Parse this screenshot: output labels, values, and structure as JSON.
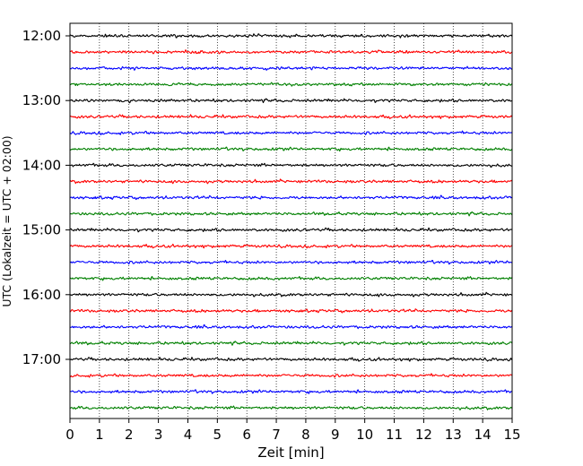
{
  "chart_data": {
    "type": "line",
    "title": "",
    "xlabel": "Zeit  [min]",
    "ylabel": "UTC (Lokalzeit = UTC + 02:00)",
    "xlim": [
      0,
      15
    ],
    "x_ticks": [
      "0",
      "1",
      "2",
      "3",
      "4",
      "5",
      "6",
      "7",
      "8",
      "9",
      "10",
      "11",
      "12",
      "13",
      "14",
      "15"
    ],
    "y_tick_labels": [
      "12:00",
      "13:00",
      "14:00",
      "15:00",
      "16:00",
      "17:00"
    ],
    "grid": "vertical dotted lines at each minute",
    "legend": "none",
    "trace_interval_min": 15,
    "trace_colors": [
      "#000000",
      "#ff0000",
      "#0000ff",
      "#008000"
    ],
    "series": [
      {
        "start": "12:00",
        "color": "#000000"
      },
      {
        "start": "12:15",
        "color": "#ff0000"
      },
      {
        "start": "12:30",
        "color": "#0000ff"
      },
      {
        "start": "12:45",
        "color": "#008000"
      },
      {
        "start": "13:00",
        "color": "#000000"
      },
      {
        "start": "13:15",
        "color": "#ff0000"
      },
      {
        "start": "13:30",
        "color": "#0000ff"
      },
      {
        "start": "13:45",
        "color": "#008000"
      },
      {
        "start": "14:00",
        "color": "#000000"
      },
      {
        "start": "14:15",
        "color": "#ff0000"
      },
      {
        "start": "14:30",
        "color": "#0000ff"
      },
      {
        "start": "14:45",
        "color": "#008000"
      },
      {
        "start": "15:00",
        "color": "#000000"
      },
      {
        "start": "15:15",
        "color": "#ff0000"
      },
      {
        "start": "15:30",
        "color": "#0000ff"
      },
      {
        "start": "15:45",
        "color": "#008000"
      },
      {
        "start": "16:00",
        "color": "#000000"
      },
      {
        "start": "16:15",
        "color": "#ff0000"
      },
      {
        "start": "16:30",
        "color": "#0000ff"
      },
      {
        "start": "16:45",
        "color": "#008000"
      },
      {
        "start": "17:00",
        "color": "#000000"
      },
      {
        "start": "17:15",
        "color": "#ff0000"
      },
      {
        "start": "17:30",
        "color": "#0000ff"
      },
      {
        "start": "17:45",
        "color": "#008000"
      }
    ]
  }
}
